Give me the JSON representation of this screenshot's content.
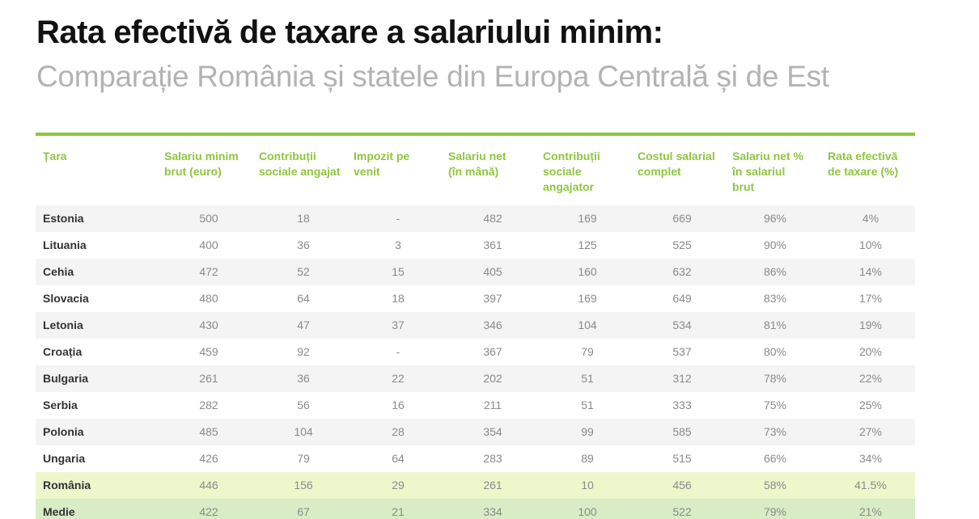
{
  "title": "Rata efectivă de taxare a salariului minim:",
  "subtitle": "Comparație România și statele din Europa Centrală și de Est",
  "accent_color": "#8dc63f",
  "columns": [
    "Țara",
    "Salariu minim\nbrut (euro)",
    "Contribuții\nsociale angajat",
    "Impozit pe\nvenit",
    "Salariu net\n(în mână)",
    "Contribuții\nsociale\nangajator",
    "Costul salarial\ncomplet",
    "Salariu net %\nîn salariul\nbrut",
    "Rata efectivă\nde taxare (%)"
  ],
  "rows": [
    {
      "country": "Estonia",
      "cells": [
        "500",
        "18",
        "-",
        "482",
        "169",
        "669",
        "96%",
        "4%"
      ]
    },
    {
      "country": "Lituania",
      "cells": [
        "400",
        "36",
        "3",
        "361",
        "125",
        "525",
        "90%",
        "10%"
      ]
    },
    {
      "country": "Cehia",
      "cells": [
        "472",
        "52",
        "15",
        "405",
        "160",
        "632",
        "86%",
        "14%"
      ]
    },
    {
      "country": "Slovacia",
      "cells": [
        "480",
        "64",
        "18",
        "397",
        "169",
        "649",
        "83%",
        "17%"
      ]
    },
    {
      "country": "Letonia",
      "cells": [
        "430",
        "47",
        "37",
        "346",
        "104",
        "534",
        "81%",
        "19%"
      ]
    },
    {
      "country": "Croația",
      "cells": [
        "459",
        "92",
        "-",
        "367",
        "79",
        "537",
        "80%",
        "20%"
      ]
    },
    {
      "country": "Bulgaria",
      "cells": [
        "261",
        "36",
        "22",
        "202",
        "51",
        "312",
        "78%",
        "22%"
      ]
    },
    {
      "country": "Serbia",
      "cells": [
        "282",
        "56",
        "16",
        "211",
        "51",
        "333",
        "75%",
        "25%"
      ]
    },
    {
      "country": "Polonia",
      "cells": [
        "485",
        "104",
        "28",
        "354",
        "99",
        "585",
        "73%",
        "27%"
      ]
    },
    {
      "country": "Ungaria",
      "cells": [
        "426",
        "79",
        "64",
        "283",
        "89",
        "515",
        "66%",
        "34%"
      ]
    },
    {
      "country": "România",
      "cells": [
        "446",
        "156",
        "29",
        "261",
        "10",
        "456",
        "58%",
        "41.5%"
      ],
      "highlight": "romania"
    },
    {
      "country": "Medie",
      "cells": [
        "422",
        "67",
        "21",
        "334",
        "100",
        "522",
        "79%",
        "21%"
      ],
      "highlight": "average"
    }
  ]
}
